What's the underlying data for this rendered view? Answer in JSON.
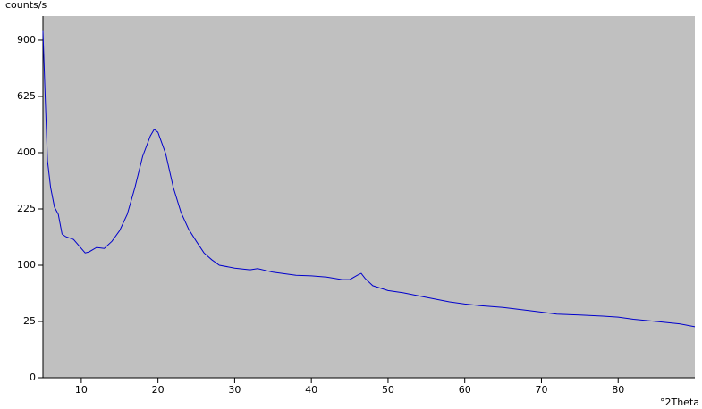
{
  "chart_data": {
    "type": "line",
    "y_label": "counts/s",
    "x_label": "°2Theta",
    "y_scale": "sqrt",
    "background": "#c0c0c0",
    "xlim": [
      5,
      90
    ],
    "ylim": [
      0,
      1033
    ],
    "xticks": [
      10,
      20,
      30,
      40,
      50,
      60,
      70,
      80
    ],
    "yticks": [
      0,
      25,
      100,
      225,
      400,
      625,
      900
    ],
    "series": [
      {
        "color": "#0000cc",
        "x": [
          5.0,
          5.3,
          5.6,
          6.0,
          6.5,
          7.0,
          7.5,
          8.0,
          9.0,
          10.0,
          10.5,
          11.0,
          12.0,
          13.0,
          14.0,
          15.0,
          16.0,
          17.0,
          18.0,
          19.0,
          19.5,
          20.0,
          21.0,
          22.0,
          23.0,
          24.0,
          25.0,
          26.0,
          27.0,
          28.0,
          30.0,
          32.0,
          33.0,
          35.0,
          38.0,
          40.0,
          42.0,
          44.0,
          45.0,
          46.0,
          46.5,
          47.0,
          48.0,
          50.0,
          52.0,
          55.0,
          58.0,
          60.0,
          62.0,
          65.0,
          68.0,
          70.0,
          72.0,
          75.0,
          78.0,
          80.0,
          82.0,
          85.0,
          88.0,
          90.0
        ],
        "values": [
          950,
          617,
          372,
          286,
          230,
          211,
          163,
          157,
          151,
          132,
          123,
          125,
          134,
          132,
          147,
          171,
          211,
          286,
          387,
          462,
          487,
          476,
          397,
          286,
          216,
          174,
          147,
          123,
          110,
          100,
          95,
          92,
          94,
          88,
          83,
          82,
          80,
          76,
          76,
          83,
          86,
          78,
          67,
          60,
          57,
          51,
          45.5,
          43,
          41,
          39,
          36,
          34,
          32,
          31,
          30,
          29,
          27,
          25,
          23,
          20.5
        ]
      }
    ]
  }
}
